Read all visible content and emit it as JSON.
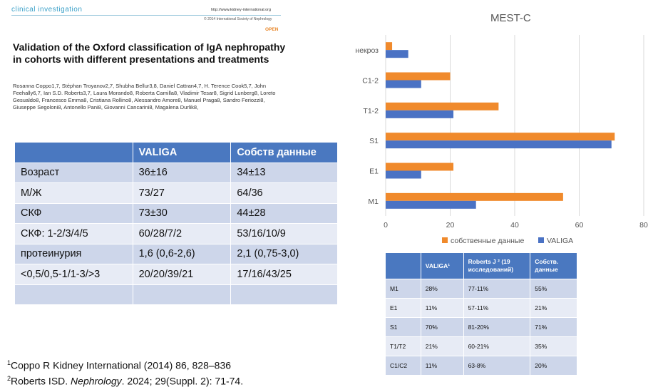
{
  "article": {
    "journal": "clinical investigation",
    "url": "http://www.kidney-international.org",
    "copyright": "© 2014 International Society of Nephrology",
    "open": "OPEN",
    "title": "Validation of the Oxford classification of IgA nephropathy in cohorts with different presentations and treatments",
    "authors": "Rosanna Coppo1,7, Stéphan Troyanov2,7, Shubha Bellur3,8, Daniel Cattran4,7, H. Terence Cook5,7, John Feehally6,7, Ian S.D. Roberts3,7, Laura Morando8, Roberta Camilla8, Vladimir Tesar8, Sigrid Lunberg8, Loreto Gesualdo8, Francesco Emma8, Cristiana Rollino8, Alessandro Amore8, Manuel Praga8, Sandro Feriozzi8, Giuseppe Segoloni8, Antonello Pani8, Giovanni Cancarini8, Magalena Durlik8,"
  },
  "left_table": {
    "headers": [
      "",
      "VALIGA",
      "Собств данные"
    ],
    "rows": [
      [
        "Возраст",
        "36±16",
        "34±13"
      ],
      [
        "М/Ж",
        "73/27",
        "64/36"
      ],
      [
        "СКФ",
        "73±30",
        "44±28"
      ],
      [
        "СКФ: 1-2/3/4/5",
        "60/28/7/2",
        "53/16/10/9"
      ],
      [
        "протеинурия",
        "1,6 (0,6-2,6)",
        "2,1 (0,75-3,0)"
      ],
      [
        "<0,5/0,5-1/1-3/>3",
        "20/20/39/21",
        "17/16/43/25"
      ],
      [
        "",
        "",
        ""
      ]
    ]
  },
  "footnotes": {
    "fn1_sup": "1",
    "fn1": "Coppo R Kidney International (2014) 86, 828–836",
    "fn2_sup": "2",
    "fn2_a": "Roberts ISD. ",
    "fn2_italic": "Nephrology",
    "fn2_b": ". 2024; 29(Suppl. 2): 71-74."
  },
  "chart_data": {
    "type": "bar",
    "orientation": "horizontal",
    "title": "MEST-C",
    "categories": [
      "некроз",
      "C1-2",
      "T1-2",
      "S1",
      "E1",
      "M1"
    ],
    "series": [
      {
        "name": "собственные данные",
        "color": "#f08a2c",
        "values": [
          2,
          20,
          35,
          71,
          21,
          55
        ]
      },
      {
        "name": "VALIGA",
        "color": "#4a72c4",
        "values": [
          7,
          11,
          21,
          70,
          11,
          28
        ]
      }
    ],
    "xlim": [
      0,
      80
    ],
    "xticks": [
      0,
      20,
      40,
      60,
      80
    ],
    "legend": "bottom",
    "grid": true
  },
  "right_table": {
    "headers": [
      "",
      "VALIGA¹",
      "Roberts  J ² (19 исследований)",
      "Собств. данные"
    ],
    "rows": [
      [
        "M1",
        "28%",
        "77-11%",
        "55%"
      ],
      [
        "E1",
        "11%",
        "57-11%",
        "21%"
      ],
      [
        "S1",
        "70%",
        "81-20%",
        "71%"
      ],
      [
        "T1/T2",
        "21%",
        "60-21%",
        "35%"
      ],
      [
        "C1/C2",
        "11%",
        "63-8%",
        "20%"
      ]
    ]
  }
}
